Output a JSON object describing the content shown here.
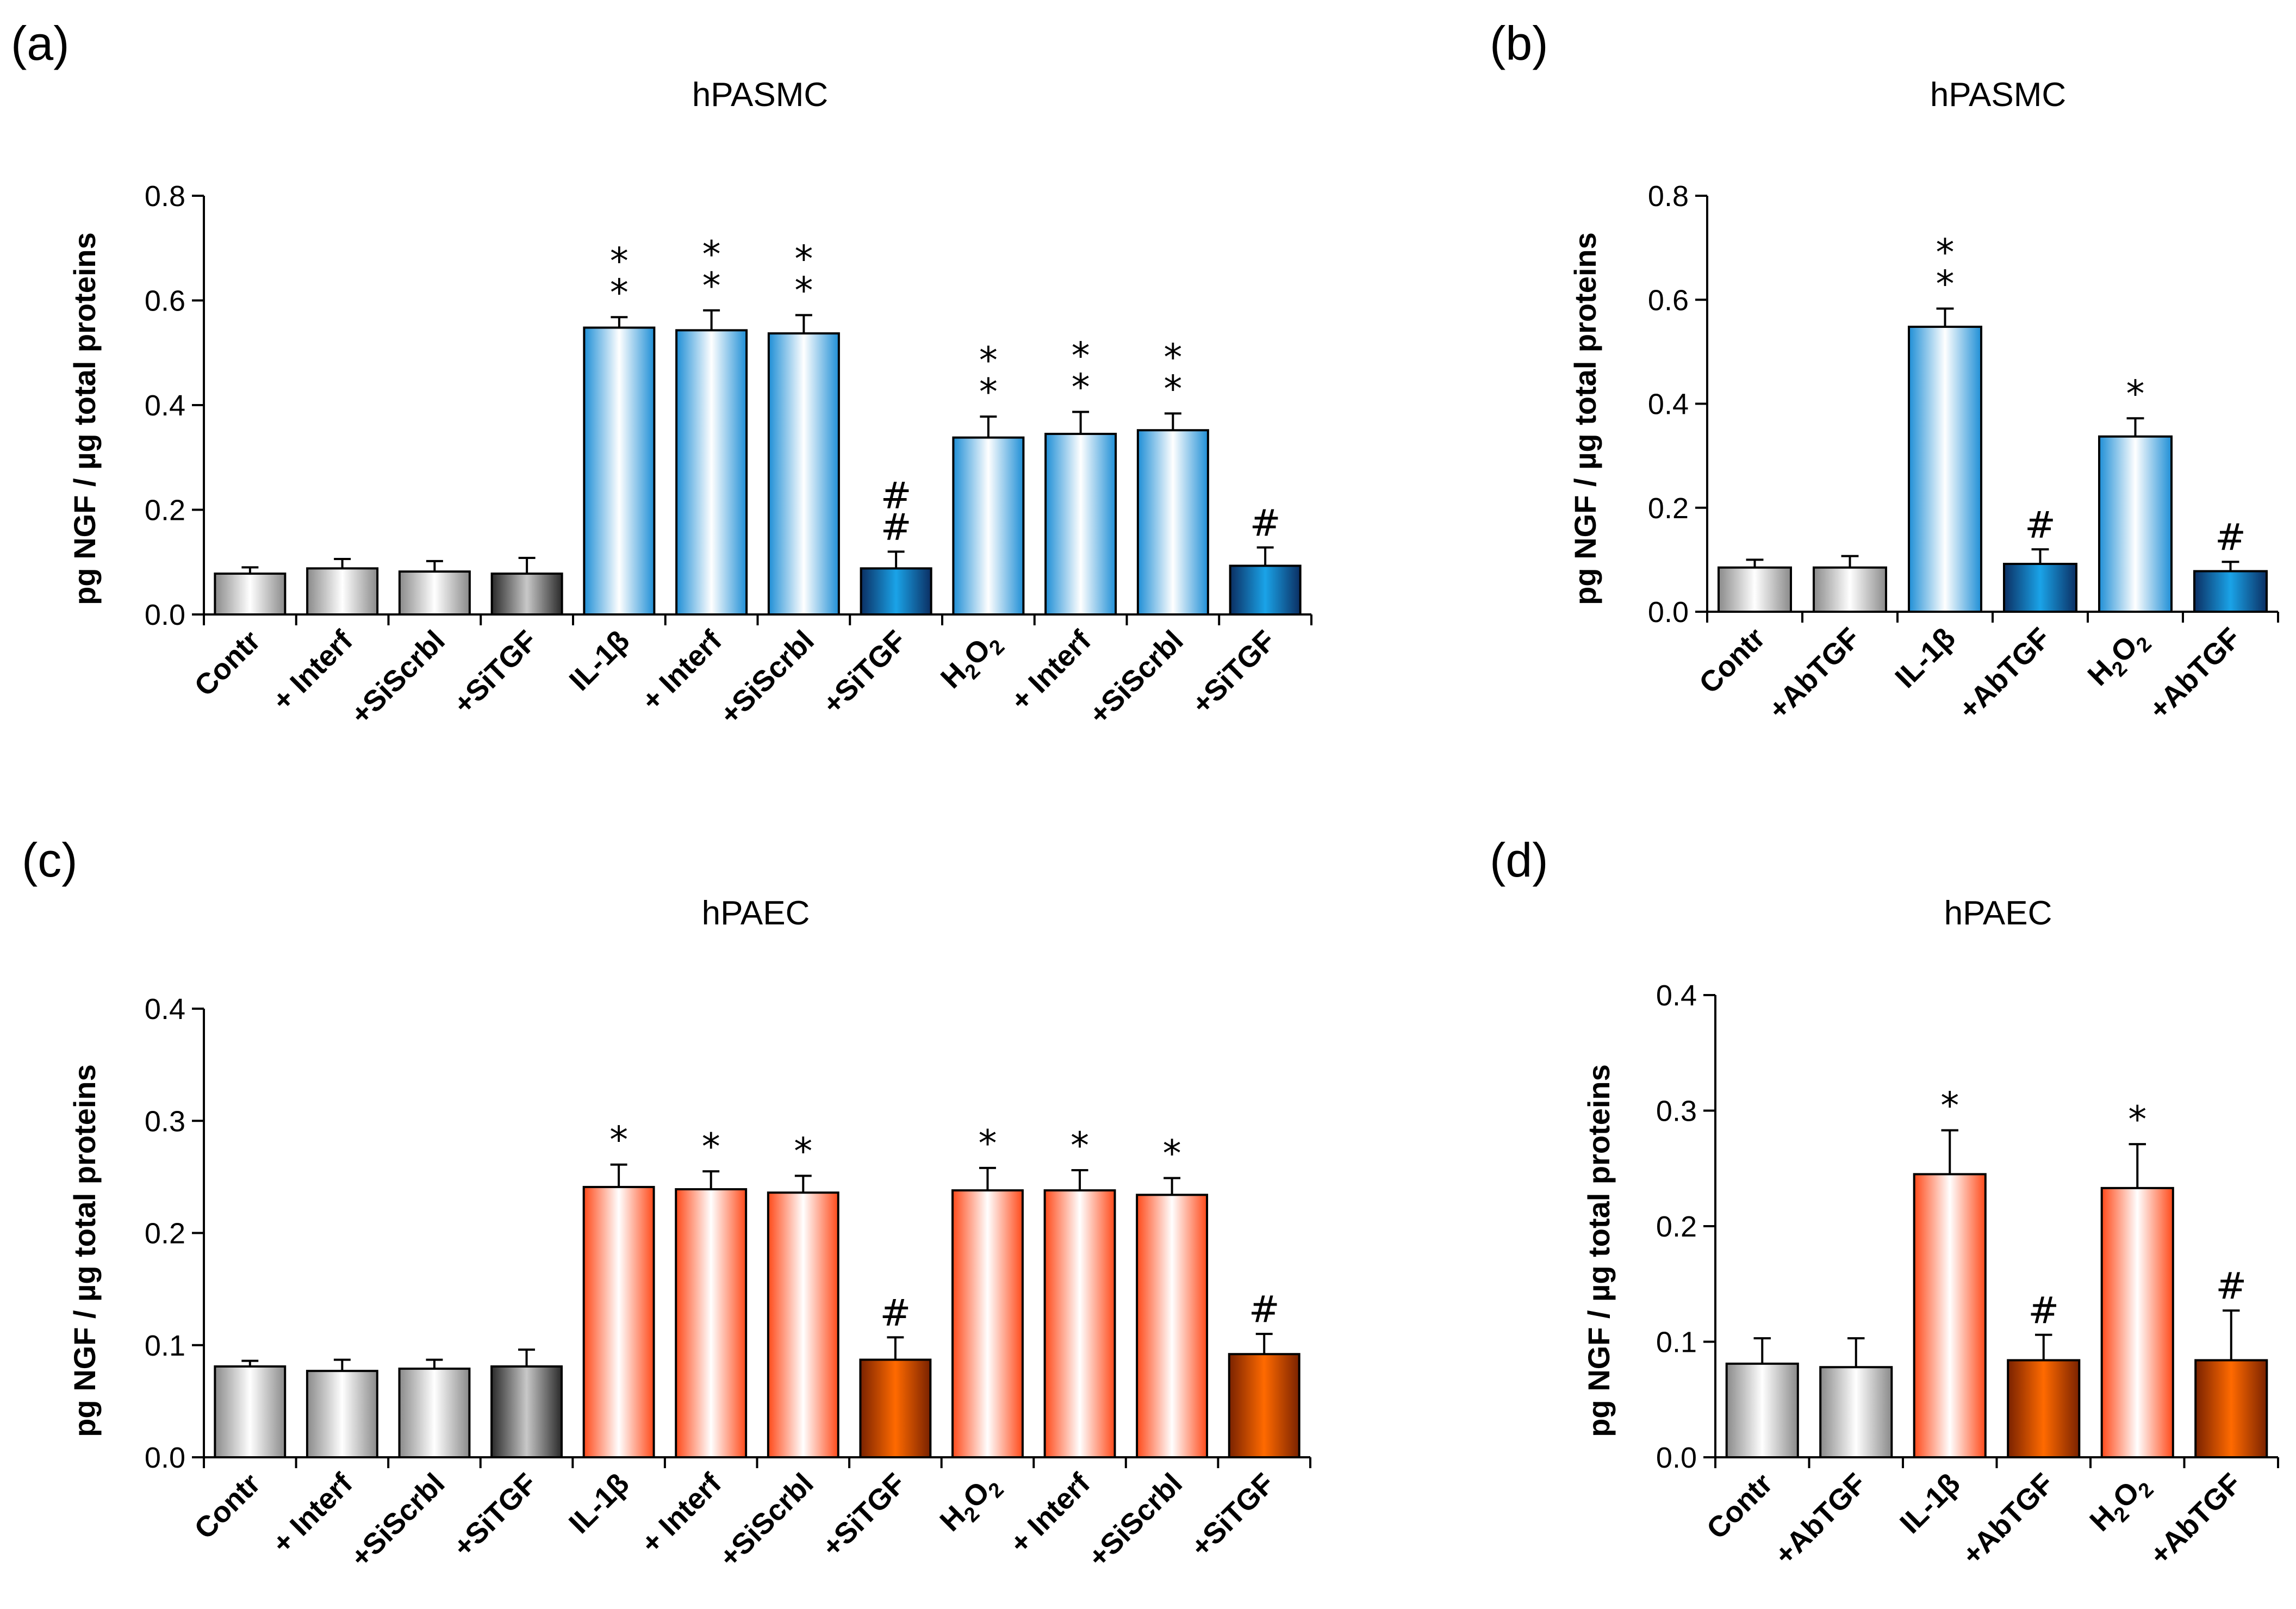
{
  "chart_data": [
    {
      "panel": "(a)",
      "type": "bar",
      "title": "hPASMC",
      "ylabel": "pg NGF / µg total proteins",
      "ylim": [
        0,
        0.8
      ],
      "yticks": [
        "0.0",
        "0.2",
        "0.4",
        "0.6",
        "0.8"
      ],
      "categories": [
        "Contr",
        "+ Interf",
        "+SiScrbl",
        "+SiTGF",
        "IL-1β",
        "+ Interf",
        "+SiScrbl",
        "+SiTGF",
        "H2O2",
        "+ Interf",
        "+SiScrbl",
        "+SiTGF"
      ],
      "values": [
        0.078,
        0.088,
        0.082,
        0.078,
        0.548,
        0.543,
        0.537,
        0.088,
        0.338,
        0.345,
        0.352,
        0.093
      ],
      "errors": [
        0.012,
        0.018,
        0.02,
        0.03,
        0.02,
        0.038,
        0.035,
        0.032,
        0.04,
        0.042,
        0.032,
        0.035
      ],
      "annotations": [
        "",
        "",
        "",
        "",
        "*\n*",
        "*\n*",
        "*\n*",
        "#\n#",
        "*\n*",
        "*\n*",
        "*\n*",
        "#"
      ],
      "bar_styles": [
        "gray",
        "gray",
        "gray",
        "darkgray",
        "blue",
        "blue",
        "blue",
        "darkblue",
        "blue",
        "blue",
        "blue",
        "darkblue"
      ]
    },
    {
      "panel": "(b)",
      "type": "bar",
      "title": "hPASMC",
      "ylabel": "pg NGF / µg total proteins",
      "ylim": [
        0,
        0.8
      ],
      "yticks": [
        "0.0",
        "0.2",
        "0.4",
        "0.6",
        "0.8"
      ],
      "categories": [
        "Contr",
        "+AbTGF",
        "IL-1β",
        "+AbTGF",
        "H2O2",
        "+AbTGF"
      ],
      "values": [
        0.085,
        0.085,
        0.548,
        0.092,
        0.337,
        0.078
      ],
      "errors": [
        0.015,
        0.022,
        0.035,
        0.028,
        0.035,
        0.018
      ],
      "annotations": [
        "",
        "",
        "*\n*",
        "#",
        "*",
        "#"
      ],
      "bar_styles": [
        "gray",
        "gray",
        "blue",
        "darkblue",
        "blue",
        "darkblue"
      ]
    },
    {
      "panel": "(c)",
      "type": "bar",
      "title": "hPAEC",
      "ylabel": "pg NGF / µg total proteins",
      "ylim": [
        0,
        0.4
      ],
      "yticks": [
        "0.0",
        "0.1",
        "0.2",
        "0.3",
        "0.4"
      ],
      "categories": [
        "Contr",
        "+ Interf",
        "+SiScrbl",
        "+SiTGF",
        "IL-1β",
        "+ Interf",
        "+SiScrbl",
        "+SiTGF",
        "H2O2",
        "+ Interf",
        "+SiScrbl",
        "+SiTGF"
      ],
      "values": [
        0.081,
        0.077,
        0.079,
        0.081,
        0.241,
        0.239,
        0.236,
        0.087,
        0.238,
        0.238,
        0.234,
        0.092
      ],
      "errors": [
        0.005,
        0.01,
        0.008,
        0.015,
        0.02,
        0.016,
        0.015,
        0.02,
        0.02,
        0.018,
        0.015,
        0.018
      ],
      "annotations": [
        "",
        "",
        "",
        "",
        "*",
        "*",
        "*",
        "#",
        "*",
        "*",
        "*",
        "#"
      ],
      "bar_styles": [
        "gray",
        "gray",
        "gray",
        "darkgray",
        "orange",
        "orange",
        "orange",
        "darkorange",
        "orange",
        "orange",
        "orange",
        "darkorange"
      ]
    },
    {
      "panel": "(d)",
      "type": "bar",
      "title": "hPAEC",
      "ylabel": "pg NGF / µg total proteins",
      "ylim": [
        0,
        0.4
      ],
      "yticks": [
        "0.0",
        "0.1",
        "0.2",
        "0.3",
        "0.4"
      ],
      "categories": [
        "Contr",
        "+AbTGF",
        "IL-1β",
        "+AbTGF",
        "H2O2",
        "+AbTGF"
      ],
      "values": [
        0.081,
        0.078,
        0.245,
        0.084,
        0.233,
        0.084
      ],
      "errors": [
        0.022,
        0.025,
        0.038,
        0.022,
        0.038,
        0.043
      ],
      "annotations": [
        "",
        "",
        "*",
        "#",
        "*",
        "#"
      ],
      "bar_styles": [
        "gray",
        "gray",
        "orange",
        "darkorange",
        "orange",
        "darkorange"
      ]
    }
  ],
  "colors": {
    "gray": [
      "#8a8a8a",
      "#ffffff"
    ],
    "darkgray": [
      "#2a2a2a",
      "#c8c8c8"
    ],
    "blue": [
      "#1f8fd6",
      "#ffffff"
    ],
    "darkblue": [
      "#0b2f63",
      "#1aa3e8"
    ],
    "orange": [
      "#ff4a1a",
      "#ffffff"
    ],
    "darkorange": [
      "#7a2200",
      "#ff6a00"
    ]
  }
}
